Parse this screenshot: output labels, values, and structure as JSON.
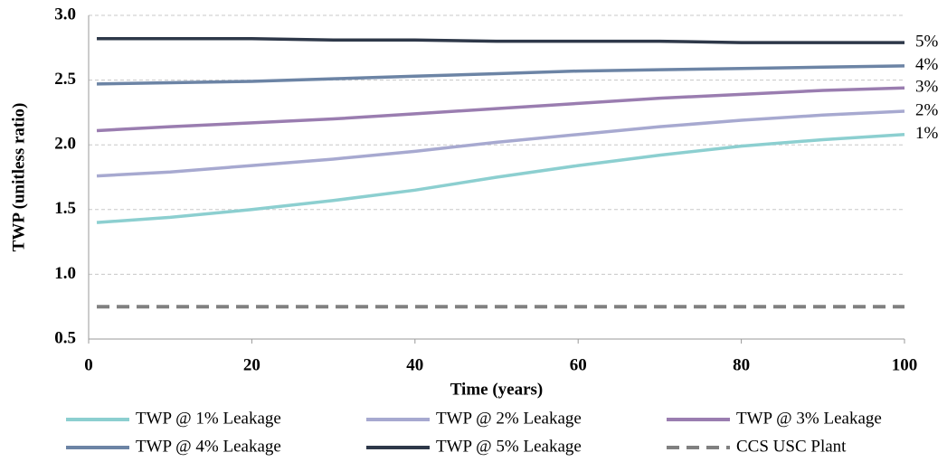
{
  "chart_data": {
    "type": "line",
    "xlabel": "Time (years)",
    "ylabel": "TWP (unitless ratio)",
    "x": [
      1,
      10,
      20,
      30,
      40,
      50,
      60,
      70,
      80,
      90,
      100
    ],
    "series": [
      {
        "name": "TWP @ 1% Leakage",
        "color": "#8ccfd0",
        "end_label": "1%",
        "values": [
          1.4,
          1.44,
          1.5,
          1.57,
          1.65,
          1.75,
          1.84,
          1.92,
          1.99,
          2.04,
          2.08
        ]
      },
      {
        "name": "TWP @ 2% Leakage",
        "color": "#a7a9d0",
        "end_label": "2%",
        "values": [
          1.76,
          1.79,
          1.84,
          1.89,
          1.95,
          2.02,
          2.08,
          2.14,
          2.19,
          2.23,
          2.26
        ]
      },
      {
        "name": "TWP @ 3% Leakage",
        "color": "#9a7db0",
        "end_label": "3%",
        "values": [
          2.11,
          2.14,
          2.17,
          2.2,
          2.24,
          2.28,
          2.32,
          2.36,
          2.39,
          2.42,
          2.44
        ]
      },
      {
        "name": "TWP @ 4% Leakage",
        "color": "#6c84a5",
        "end_label": "4%",
        "values": [
          2.47,
          2.48,
          2.49,
          2.51,
          2.53,
          2.55,
          2.57,
          2.58,
          2.59,
          2.6,
          2.61
        ]
      },
      {
        "name": "TWP @ 5% Leakage",
        "color": "#2e3849",
        "end_label": "5%",
        "values": [
          2.82,
          2.82,
          2.82,
          2.81,
          2.81,
          2.8,
          2.8,
          2.8,
          2.79,
          2.79,
          2.79
        ]
      },
      {
        "name": "CCS USC Plant",
        "color": "#808080",
        "dashed": true,
        "values": [
          0.75,
          0.75,
          0.75,
          0.75,
          0.75,
          0.75,
          0.75,
          0.75,
          0.75,
          0.75,
          0.75
        ]
      }
    ],
    "xlim": [
      0,
      100
    ],
    "xticks": [
      0,
      20,
      40,
      60,
      80,
      100
    ],
    "ylim": [
      0.5,
      3.0
    ],
    "yticks": [
      {
        "value": 0.5,
        "label": "0.5"
      },
      {
        "value": 1.0,
        "label": "1.0"
      },
      {
        "value": 1.5,
        "label": "1.5"
      },
      {
        "value": 2.0,
        "label": "2.0"
      },
      {
        "value": 2.5,
        "label": "2.5"
      },
      {
        "value": 3.0,
        "label": "3.0"
      }
    ],
    "grid": true,
    "legend": "bottom"
  }
}
